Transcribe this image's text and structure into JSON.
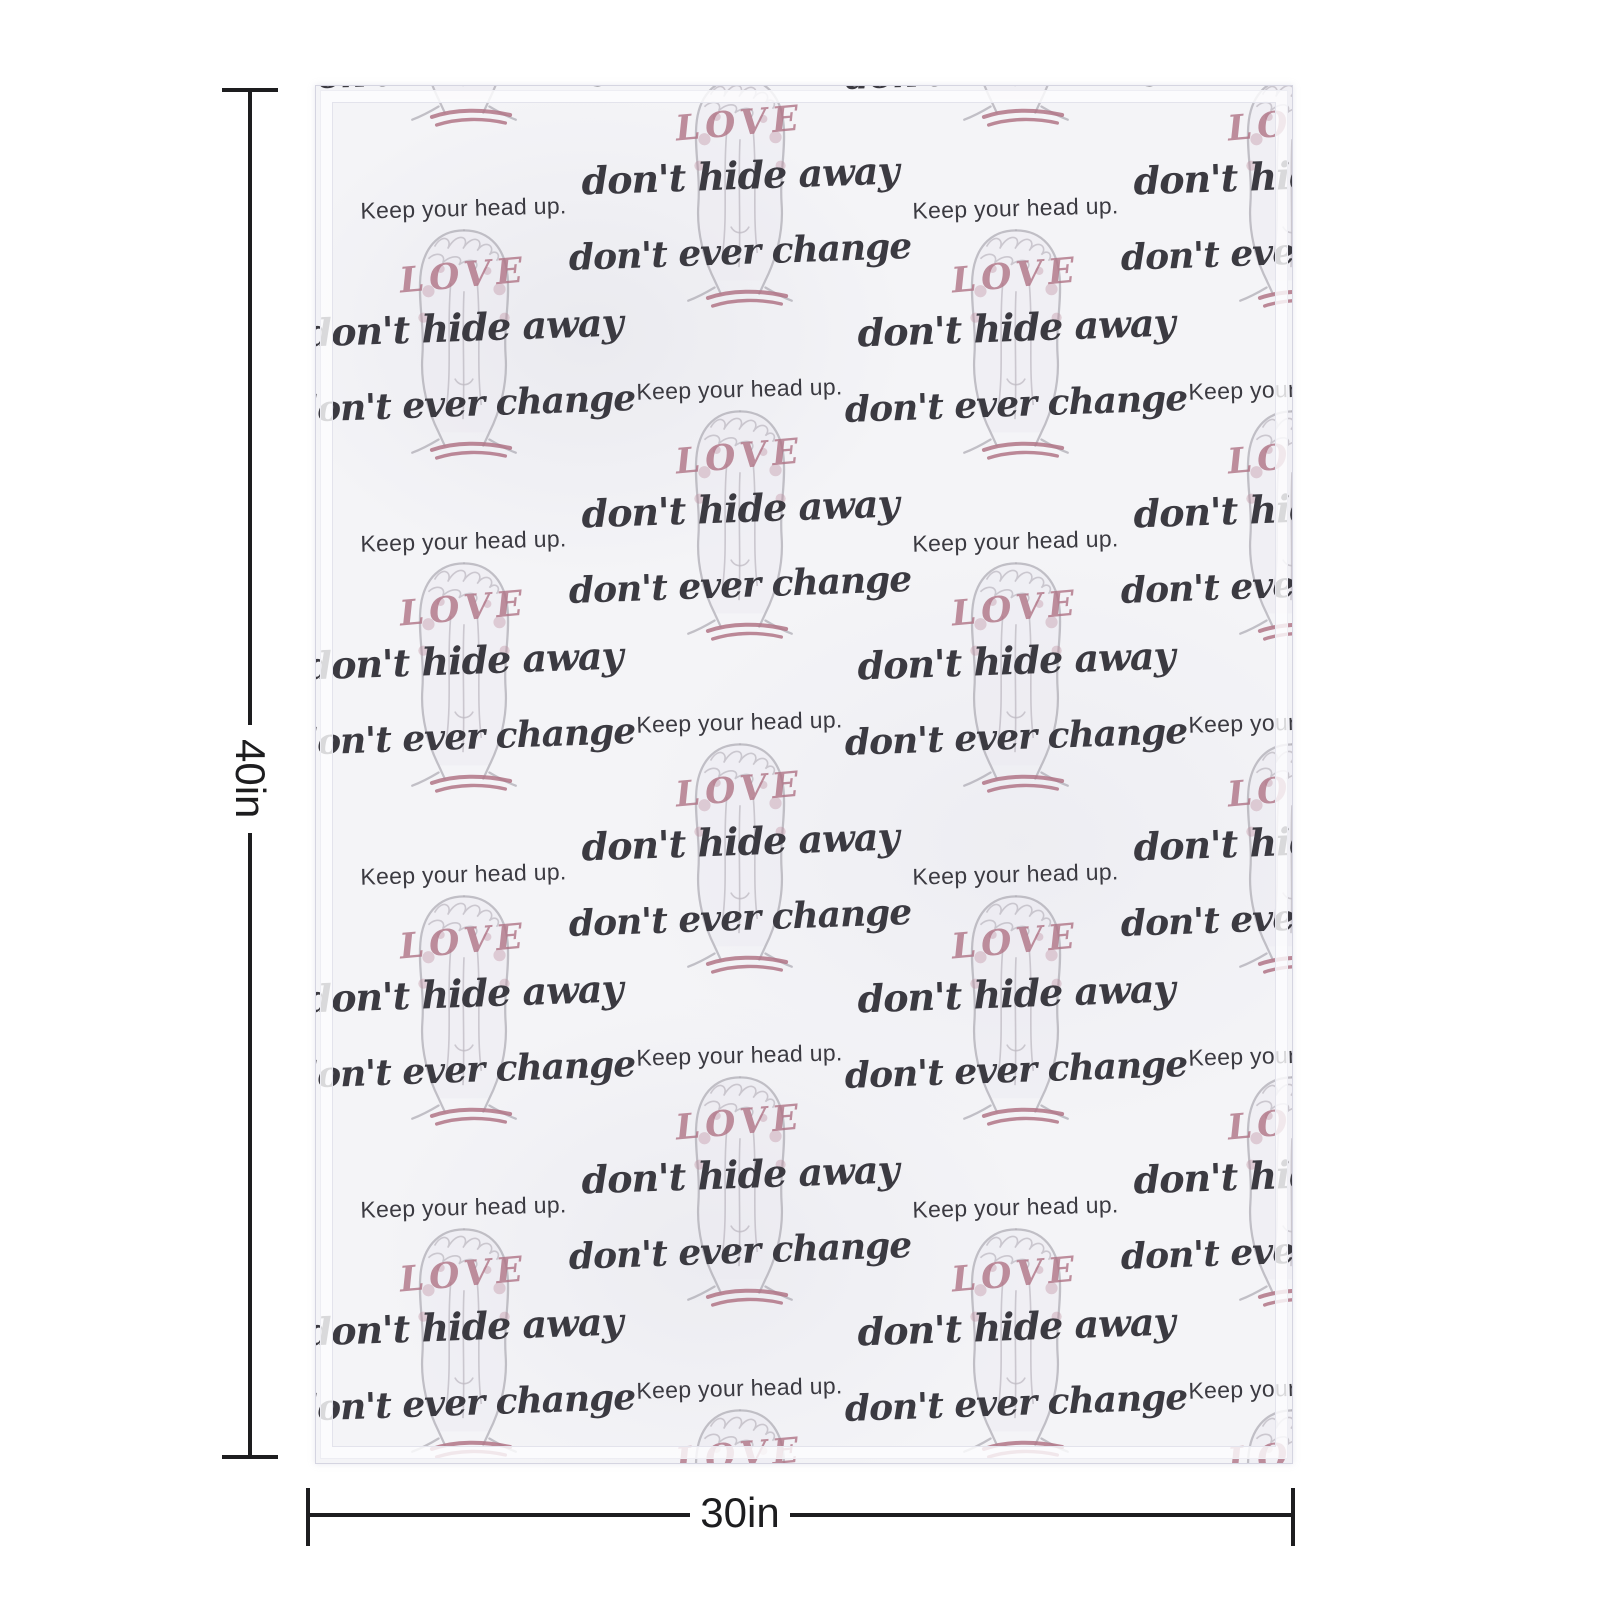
{
  "mockup": {
    "description": "blanket-size-mockup",
    "pattern": {
      "line1": "Keep your head up.",
      "line2": "don't hide away",
      "line3": "don't ever change",
      "figure_text": "LOVE"
    },
    "dimensions": {
      "height_label": "40in",
      "width_label": "30in"
    }
  },
  "colors": {
    "fabric": "#f4f4f7",
    "text": "#3b3a41",
    "accent_pink": "#b07486",
    "sketch_gray": "#a9a6af",
    "dimension_line": "#1d1d1f"
  }
}
